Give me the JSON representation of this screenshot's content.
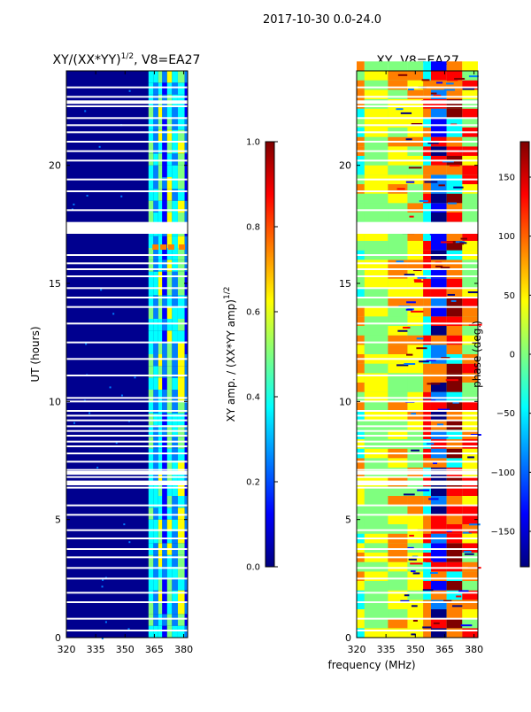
{
  "suptitle": "2017-10-30 0.0-24.0",
  "colors": {
    "panel_background": "#00008f",
    "gap_color": "#ffffff",
    "colormap": [
      "#00007f",
      "#0000ff",
      "#007fff",
      "#00ffff",
      "#7fff7f",
      "#ffff00",
      "#ff7f00",
      "#ff0000",
      "#7f0000"
    ]
  },
  "xlabel_shared": "frequency (MHz)",
  "chart_data": [
    {
      "type": "heatmap",
      "title_main": "XY/(XX*YY)",
      "title_sup": "1/2",
      "title_tail": ", V8=EA27",
      "x_range": [
        320,
        382
      ],
      "y_range": [
        0,
        24
      ],
      "x_ticks": [
        "320",
        "335",
        "350",
        "365",
        "380"
      ],
      "x_tick_values": [
        320,
        335,
        350,
        365,
        380
      ],
      "y_ticks": [
        "0",
        "5",
        "10",
        "15",
        "20"
      ],
      "y_tick_values": [
        0,
        5,
        10,
        15,
        20
      ],
      "ylabel": "UT (hours)",
      "colorbar": {
        "label_main": "XY amp. / (XX*YY amp)",
        "label_sup": "1/2",
        "range": [
          0.0,
          1.0
        ],
        "ticks": [
          "0.0",
          "0.2",
          "0.4",
          "0.6",
          "0.8",
          "1.0"
        ],
        "tick_values": [
          0.0,
          0.2,
          0.4,
          0.6,
          0.8,
          1.0
        ]
      }
    },
    {
      "type": "heatmap",
      "title_main": "XY, V8=EA27",
      "x_range": [
        320,
        382
      ],
      "y_range": [
        0,
        24
      ],
      "x_ticks": [
        "320",
        "335",
        "350",
        "365",
        "380"
      ],
      "x_tick_values": [
        320,
        335,
        350,
        365,
        380
      ],
      "y_ticks": [
        "0",
        "5",
        "10",
        "15",
        "20"
      ],
      "y_tick_values": [
        0,
        5,
        10,
        15,
        20
      ],
      "colorbar": {
        "label": "phase (deg.)",
        "range": [
          -180,
          180
        ],
        "ticks": [
          "−150",
          "−100",
          "−50",
          "0",
          "50",
          "100",
          "150"
        ],
        "tick_values": [
          -150,
          -100,
          -50,
          0,
          50,
          100,
          150
        ]
      }
    }
  ],
  "gaps_hours": [
    0.3,
    0.8,
    1.5,
    1.9,
    2.5,
    2.95,
    3.4,
    3.75,
    4.2,
    4.55,
    5.2,
    5.6,
    6.35,
    6.6,
    6.8,
    7.1,
    7.45,
    7.8,
    8.1,
    8.3,
    8.55,
    8.75,
    8.95,
    9.2,
    9.4,
    9.6,
    10.0,
    10.15,
    11.1,
    11.8,
    12.5,
    13.3,
    14.0,
    14.4,
    14.8,
    15.3,
    15.6,
    15.85,
    16.2,
    18.1,
    18.9,
    19.4,
    20.2,
    20.6,
    21.0,
    21.4,
    21.7,
    22.0,
    22.5,
    22.9,
    23.3
  ],
  "wide_gaps_hours": [
    [
      6.45,
      6.65
    ],
    [
      6.9,
      7.05
    ],
    [
      17.1,
      17.6
    ],
    [
      22.6,
      22.75
    ]
  ]
}
